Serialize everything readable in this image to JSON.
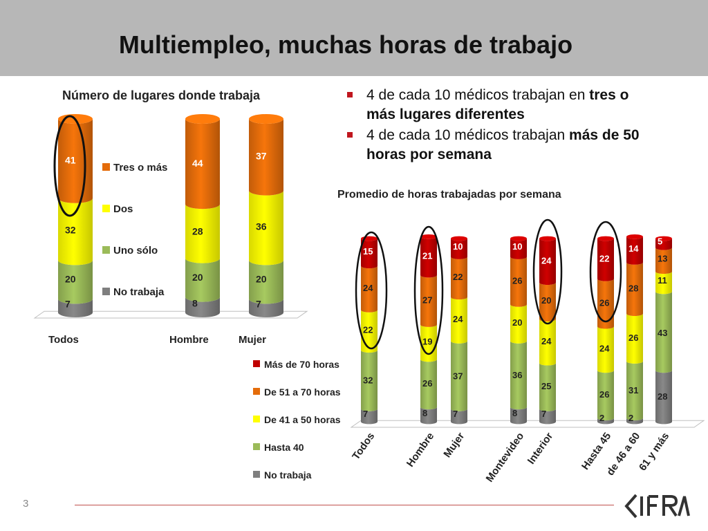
{
  "slide": {
    "title": "Multiempleo, muchas horas de trabajo",
    "page_number": "3",
    "bullets": [
      {
        "normal": "4 de cada 10 médicos trabajan en ",
        "bold": "tres o más lugares diferentes"
      },
      {
        "normal": "4 de cada 10 médicos trabajan ",
        "bold": "más de 50 horas por semana"
      }
    ],
    "logo_text": "CIFRA"
  },
  "colors": {
    "header_bg": "#b7b7b7",
    "no_trabaja": "#7f7f7f",
    "hasta40": "#9bbb59",
    "amarillo": "#ffff00",
    "naranja": "#e46c0a",
    "rojo": "#c00000",
    "accent_line": "#c0504d"
  },
  "chart_data": [
    {
      "type": "bar",
      "stacked": true,
      "title": "Número de lugares donde trabaja",
      "categories": [
        "Todos",
        "Hombre",
        "Mujer"
      ],
      "series": [
        {
          "name": "No trabaja",
          "values": [
            7,
            8,
            7
          ]
        },
        {
          "name": "Uno sólo",
          "values": [
            20,
            20,
            20
          ]
        },
        {
          "name": "Dos",
          "values": [
            32,
            28,
            36
          ]
        },
        {
          "name": "Tres o más",
          "values": [
            41,
            44,
            37
          ]
        }
      ],
      "legend": "right",
      "legend_order": [
        "Tres o más",
        "Dos",
        "Uno sólo",
        "No trabaja"
      ],
      "highlighted_categories": [
        "Todos"
      ]
    },
    {
      "type": "bar",
      "stacked": true,
      "title": "Promedio de horas trabajadas por semana",
      "categories": [
        "Todos",
        "Hombre",
        "Mujer",
        "Montevideo",
        "Interior",
        "Hasta 45",
        "de 46 a 60",
        "61 y más"
      ],
      "series": [
        {
          "name": "No trabaja",
          "values": [
            7,
            8,
            7,
            8,
            7,
            2,
            2,
            28
          ]
        },
        {
          "name": "Hasta 40",
          "values": [
            32,
            26,
            37,
            36,
            25,
            26,
            31,
            43
          ]
        },
        {
          "name": "De 41 a 50 horas",
          "values": [
            22,
            19,
            24,
            20,
            24,
            24,
            26,
            11
          ]
        },
        {
          "name": "De 51 a 70 horas",
          "values": [
            24,
            27,
            22,
            26,
            20,
            26,
            28,
            13
          ]
        },
        {
          "name": "Más de 70 horas",
          "values": [
            15,
            21,
            10,
            10,
            24,
            22,
            14,
            5
          ]
        }
      ],
      "legend": "left",
      "legend_order": [
        "Más de 70 horas",
        "De 51 a 70 horas",
        "De 41 a 50 horas",
        "Hasta 40",
        "No trabaja"
      ],
      "highlighted_categories": [
        "Todos",
        "Hombre",
        "Interior",
        "Hasta 45"
      ]
    }
  ]
}
